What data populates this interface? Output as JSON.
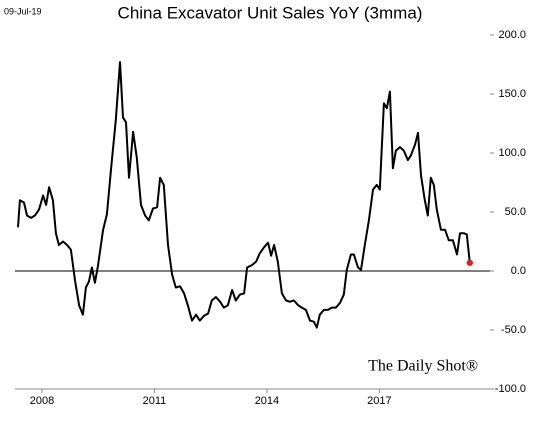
{
  "chart_data": {
    "type": "line",
    "title": "China Excavator Unit Sales YoY (3mma)",
    "date_note": "09-Jul-19",
    "watermark": "The Daily Shot®",
    "x": [
      2007.36,
      2007.41,
      2007.52,
      2007.6,
      2007.71,
      2007.81,
      2007.92,
      2008.03,
      2008.11,
      2008.19,
      2008.29,
      2008.37,
      2008.45,
      2008.56,
      2008.67,
      2008.77,
      2008.88,
      2008.99,
      2009.09,
      2009.17,
      2009.25,
      2009.33,
      2009.41,
      2009.49,
      2009.63,
      2009.73,
      2009.84,
      2009.97,
      2010.08,
      2010.16,
      2010.24,
      2010.32,
      2010.43,
      2010.53,
      2010.64,
      2010.75,
      2010.85,
      2010.96,
      2011.07,
      2011.15,
      2011.25,
      2011.36,
      2011.47,
      2011.57,
      2011.68,
      2011.79,
      2011.89,
      2012.0,
      2012.11,
      2012.21,
      2012.32,
      2012.43,
      2012.53,
      2012.64,
      2012.75,
      2012.85,
      2012.96,
      2013.07,
      2013.17,
      2013.28,
      2013.39,
      2013.47,
      2013.6,
      2013.71,
      2013.81,
      2013.92,
      2014.03,
      2014.11,
      2014.19,
      2014.29,
      2014.4,
      2014.51,
      2014.61,
      2014.72,
      2014.83,
      2014.93,
      2015.04,
      2015.15,
      2015.25,
      2015.33,
      2015.41,
      2015.52,
      2015.63,
      2015.73,
      2015.84,
      2015.95,
      2016.05,
      2016.13,
      2016.24,
      2016.32,
      2016.43,
      2016.51,
      2016.61,
      2016.72,
      2016.83,
      2016.93,
      2017.01,
      2017.12,
      2017.2,
      2017.28,
      2017.36,
      2017.44,
      2017.55,
      2017.65,
      2017.76,
      2017.84,
      2017.95,
      2018.03,
      2018.11,
      2018.21,
      2018.29,
      2018.37,
      2018.45,
      2018.53,
      2018.64,
      2018.75,
      2018.85,
      2018.96,
      2019.07,
      2019.15,
      2019.25,
      2019.33,
      2019.41
    ],
    "series": [
      {
        "name": "China Excavator Unit Sales YoY (3mma)",
        "color": "#000000",
        "values": [
          37,
          60,
          58,
          47,
          45,
          47,
          52,
          64,
          56,
          71,
          60,
          32,
          22,
          25,
          22,
          18,
          -8,
          -29,
          -37,
          -14,
          -9,
          3,
          -10,
          4,
          35,
          48,
          86,
          128,
          177,
          130,
          126,
          79,
          118,
          96,
          56,
          47,
          43,
          53,
          54,
          79,
          73,
          22,
          -3,
          -14,
          -13,
          -19,
          -29,
          -42,
          -37,
          -42,
          -38,
          -36,
          -25,
          -22,
          -26,
          -31,
          -29,
          -16,
          -25,
          -20,
          -19,
          3,
          5,
          8,
          15,
          20,
          24,
          13,
          22,
          8,
          -19,
          -25,
          -26,
          -25,
          -29,
          -31,
          -33,
          -42,
          -43,
          -48,
          -37,
          -33,
          -33,
          -31,
          -31,
          -27,
          -20,
          1,
          14,
          14,
          3,
          1,
          22,
          43,
          69,
          73,
          69,
          142,
          138,
          152,
          87,
          102,
          105,
          102,
          94,
          98,
          107,
          117,
          81,
          60,
          47,
          79,
          73,
          52,
          35,
          35,
          26,
          26,
          14,
          32,
          32,
          31,
          7
        ]
      }
    ],
    "last_point_color": "#e02020",
    "xlim": [
      2007.28,
      2019.95
    ],
    "xticks": [
      2008,
      2011,
      2014,
      2017
    ],
    "ylim": [
      -100,
      200
    ],
    "yticks": [
      {
        "value": -100,
        "label": "-100.0"
      },
      {
        "value": -50,
        "label": "-50.0"
      },
      {
        "value": 0,
        "label": "0.0"
      },
      {
        "value": 50,
        "label": "50.0"
      },
      {
        "value": 100,
        "label": "100.0"
      },
      {
        "value": 150,
        "label": "150.0"
      },
      {
        "value": 200,
        "label": "200.0"
      }
    ],
    "zero_line": true
  }
}
